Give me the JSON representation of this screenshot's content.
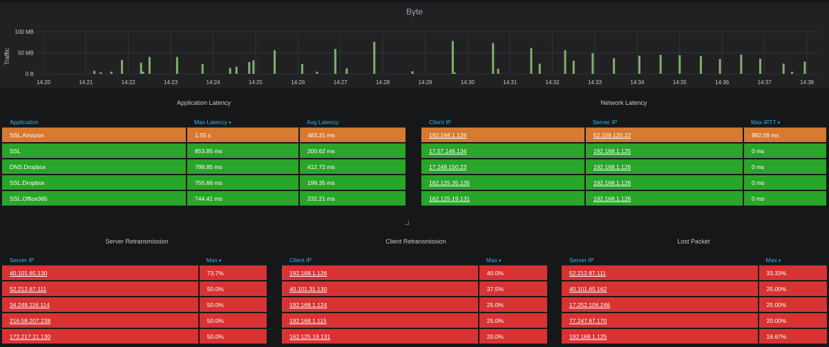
{
  "chart": {
    "title": "Byte",
    "ylabel": "Traffic",
    "yticks": [
      "100 MB",
      "50 MB",
      "0 B"
    ],
    "xticks": [
      "14:20",
      "14:21",
      "14:22",
      "14:23",
      "14:24",
      "14:25",
      "14:26",
      "14:27",
      "14:28",
      "14:29",
      "14:30",
      "14:31",
      "14:32",
      "14:33",
      "14:34",
      "14:35",
      "14:36",
      "14:37",
      "14:38"
    ],
    "bar_color": "#7eb26d"
  },
  "chart_data": {
    "type": "bar",
    "title": "Byte",
    "ylabel": "Traffic",
    "xlabel": "",
    "ylim": [
      0,
      100
    ],
    "unit": "MB",
    "x_range_minutes": [
      0,
      18
    ],
    "x": [
      1.2,
      1.35,
      1.6,
      1.85,
      2.3,
      2.35,
      2.5,
      3.15,
      3.75,
      4.4,
      4.55,
      4.85,
      4.95,
      5.45,
      6.1,
      6.45,
      6.88,
      7.15,
      7.8,
      8.7,
      9.65,
      9.7,
      10.6,
      10.72,
      11.5,
      11.7,
      12.3,
      12.5,
      12.95,
      13.45,
      14.05,
      14.55,
      15.0,
      15.5,
      15.95,
      16.45,
      16.9,
      17.45,
      17.65,
      17.95
    ],
    "values": [
      7,
      4,
      5,
      33,
      26,
      5,
      40,
      40,
      23,
      14,
      17,
      28,
      32,
      56,
      23,
      5,
      59,
      13,
      76,
      6,
      78,
      3,
      73,
      12,
      61,
      24,
      56,
      31,
      49,
      37,
      43,
      45,
      44,
      42,
      35,
      46,
      36,
      24,
      5,
      29
    ]
  },
  "app_latency": {
    "title": "Application Latency",
    "columns": [
      "Application",
      "Max Latency",
      "Avg Latency"
    ],
    "rows": [
      [
        "SSL.Amazon",
        "1.55 s",
        "483.31 ms"
      ],
      [
        "SSL",
        "853.85 ms",
        "200.62 ms"
      ],
      [
        "DNS.Dropbox",
        "788.85 ms",
        "412.72 ms"
      ],
      [
        "SSL.Dropbox",
        "755.66 ms",
        "199.35 ms"
      ],
      [
        "SSL.Office365",
        "744.41 ms",
        "232.21 ms"
      ]
    ],
    "row_colors": [
      "orange",
      "green",
      "green",
      "green",
      "green"
    ]
  },
  "net_latency": {
    "title": "Network Latency",
    "columns": [
      "Client IP",
      "Server IP",
      "Max iRTT"
    ],
    "rows": [
      [
        "192.168.1.126",
        "52.109.120.22",
        "982.09 ms"
      ],
      [
        "17.57.146.134",
        "192.168.1.125",
        "0 ms"
      ],
      [
        "17.248.150.23",
        "192.168.1.126",
        "0 ms"
      ],
      [
        "162.125.35.135",
        "192.168.1.126",
        "0 ms"
      ],
      [
        "162.125.19.131",
        "192.168.1.126",
        "0 ms"
      ]
    ],
    "row_colors": [
      "orange",
      "green",
      "green",
      "green",
      "green"
    ]
  },
  "server_retrans": {
    "title": "Server Retransmission",
    "columns": [
      "Server IP",
      "Max"
    ],
    "rows": [
      [
        "40.101.65.130",
        "73.7%"
      ],
      [
        "52.212.87.111",
        "50.0%"
      ],
      [
        "34.248.116.114",
        "50.0%"
      ],
      [
        "216.58.207.238",
        "50.0%"
      ],
      [
        "172.217.21.130",
        "50.0%"
      ]
    ]
  },
  "client_retrans": {
    "title": "Client Retransmission",
    "columns": [
      "Client IP",
      "Max"
    ],
    "rows": [
      [
        "192.168.1.126",
        "40.0%"
      ],
      [
        "40.101.31.130",
        "37.5%"
      ],
      [
        "192.168.1.124",
        "25.0%"
      ],
      [
        "192.168.1.115",
        "25.0%"
      ],
      [
        "162.125.19.131",
        "20.0%"
      ]
    ]
  },
  "lost_packet": {
    "title": "Lost Packet",
    "columns": [
      "Server IP",
      "Max"
    ],
    "rows": [
      [
        "52.212.87.111",
        "33.33%"
      ],
      [
        "40.101.65.162",
        "25.00%"
      ],
      [
        "17.252.106.246",
        "25.00%"
      ],
      [
        "77.247.67.170",
        "20.00%"
      ],
      [
        "192.168.1.125",
        "16.67%"
      ]
    ]
  }
}
